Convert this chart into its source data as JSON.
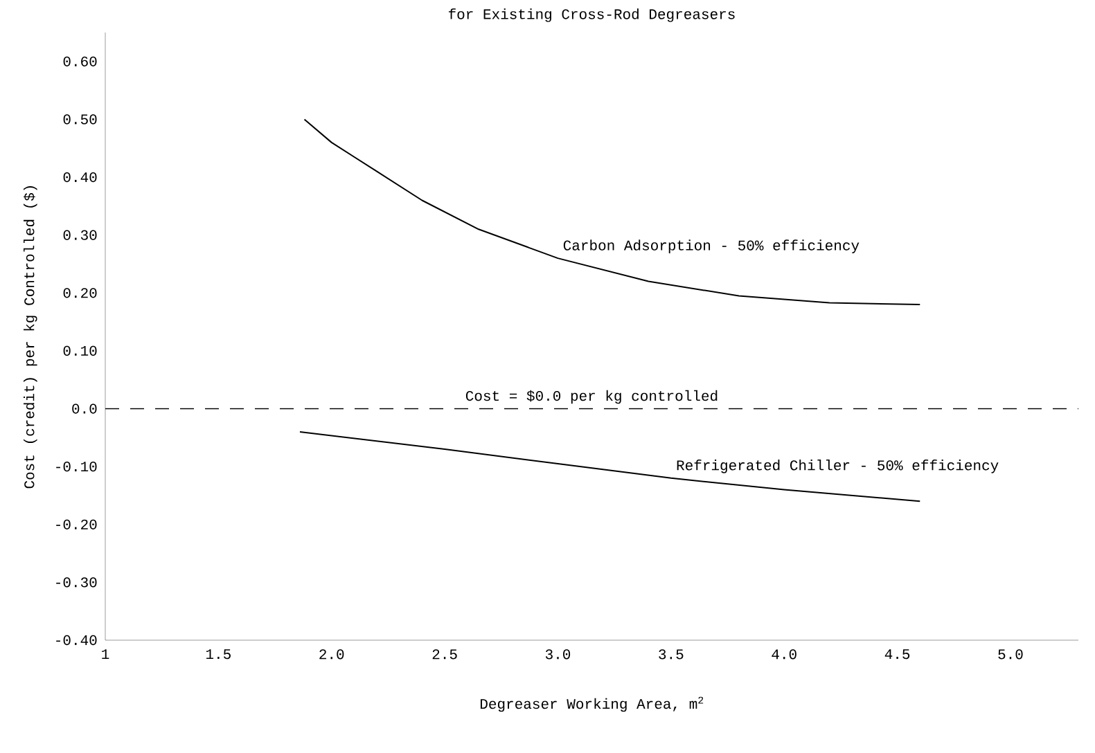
{
  "chart_data": {
    "type": "line",
    "title": "for Existing Cross-Rod Degreasers",
    "xlabel": "Degreaser Working Area, m$^{2}$",
    "ylabel": "Cost (credit) per kg Controlled ($)",
    "xlim": [
      1,
      5.3
    ],
    "ylim": [
      -0.4,
      0.65
    ],
    "xticks": [
      1,
      1.5,
      {
        "value": 2,
        "label": "2.0"
      },
      2.5,
      {
        "value": 3,
        "label": "3.0"
      },
      3.5,
      {
        "value": 4,
        "label": "4.0"
      },
      4.5,
      {
        "value": 5,
        "label": "5.0"
      }
    ],
    "yticks": [
      {
        "value": 0.6,
        "label": "0.60"
      },
      {
        "value": 0.5,
        "label": "0.50"
      },
      {
        "value": 0.4,
        "label": "0.40"
      },
      {
        "value": 0.3,
        "label": "0.30"
      },
      {
        "value": 0.2,
        "label": "0.20"
      },
      {
        "value": 0.1,
        "label": "0.10"
      },
      {
        "value": 0,
        "label": "0.0"
      },
      {
        "value": -0.1,
        "label": "-0.10"
      },
      {
        "value": -0.2,
        "label": "-0.20"
      },
      {
        "value": -0.3,
        "label": "-0.30"
      },
      {
        "value": -0.4,
        "label": "-0.40"
      }
    ],
    "series": [
      {
        "name": "Carbon Adsorption - 50% efficiency",
        "color": "#000000",
        "x": [
          1.88,
          2.0,
          2.2,
          2.4,
          2.65,
          3.0,
          3.4,
          3.8,
          4.2,
          4.6
        ],
        "values": [
          0.5,
          0.46,
          0.41,
          0.36,
          0.31,
          0.26,
          0.22,
          0.195,
          0.183,
          0.18
        ]
      },
      {
        "name": "Refrigerated Chiller - 50% efficiency",
        "color": "#000000",
        "x": [
          1.86,
          2.5,
          3.0,
          3.5,
          4.0,
          4.6
        ],
        "values": [
          -0.04,
          -0.07,
          -0.095,
          -0.12,
          -0.14,
          -0.16
        ]
      }
    ],
    "ref_lines": [
      {
        "axis": "y",
        "value": 0,
        "label": "Cost = $0.0 per kg controlled",
        "line_style": "dashed"
      }
    ],
    "grid": false,
    "legend": false,
    "line_style": "solid",
    "marker": "none"
  }
}
